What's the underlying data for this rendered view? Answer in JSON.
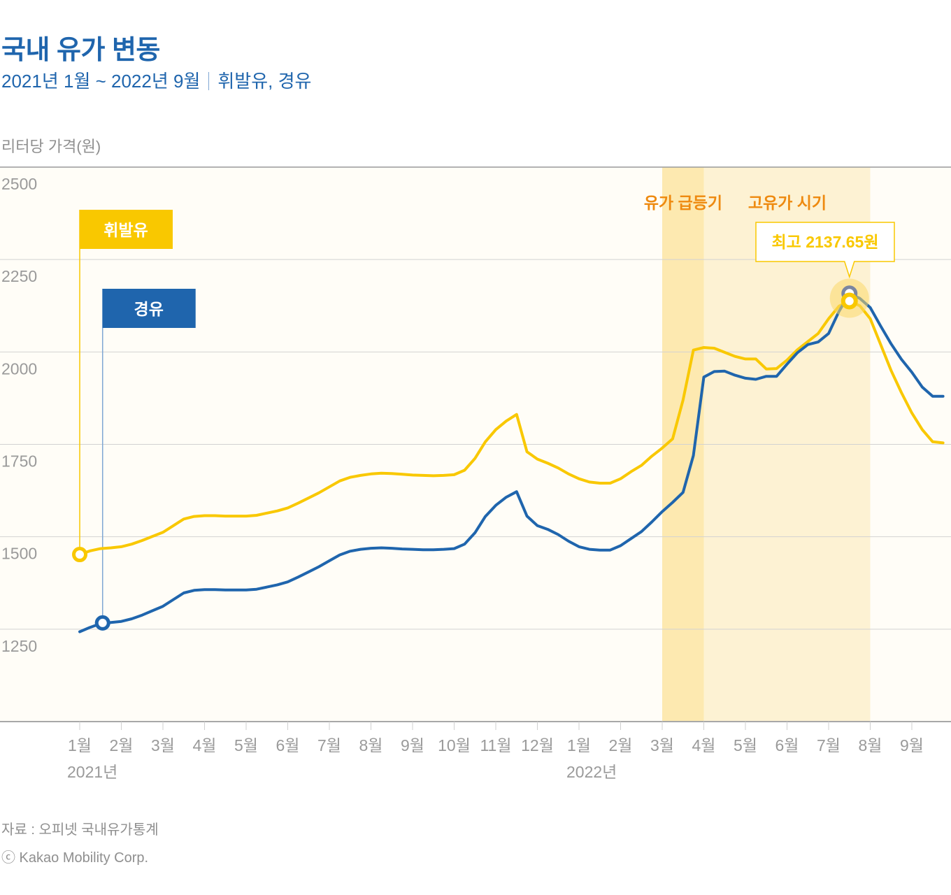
{
  "header": {
    "title": "국내 유가 변동",
    "subtitle_period": "2021년 1월 ~ 2022년 9월",
    "subtitle_fuels": "휘발유, 경유"
  },
  "footer": {
    "source": "자료 : 오피넷 국내유가통계",
    "copyright": "ⓒ Kakao Mobility Corp."
  },
  "colors": {
    "gasoline": "#f9c800",
    "diesel": "#1f65ad",
    "surge_band": "#fde9b0",
    "high_band": "#fdf2d3",
    "annotation_text": "#ee8a10",
    "plot_bg": "#fffdf7",
    "grid": "#d2d2d2",
    "axis_text": "#9a9a9a"
  },
  "chart_data": {
    "type": "line",
    "title": "국내 유가 변동",
    "ylabel": "리터당 가격(원)",
    "xlabel": "",
    "ylim": [
      1000,
      2500
    ],
    "yticks": [
      1250,
      1500,
      1750,
      2000,
      2250,
      2500
    ],
    "grid": true,
    "x_tick_labels": [
      "1월",
      "2월",
      "3월",
      "4월",
      "5월",
      "6월",
      "7월",
      "8월",
      "9월",
      "10월",
      "11월",
      "12월",
      "1월",
      "2월",
      "3월",
      "4월",
      "5월",
      "6월",
      "7월",
      "8월",
      "9월"
    ],
    "x_year_labels": [
      {
        "label": "2021년",
        "month_index": 0
      },
      {
        "label": "2022년",
        "month_index": 12
      }
    ],
    "x_note": "x values are month index from 2021년 1월 (0) to 2022년 9월 (20), approx. weekly",
    "series": [
      {
        "name": "휘발유",
        "legend_label": "휘발유",
        "points": [
          [
            0.0,
            1452
          ],
          [
            0.25,
            1462
          ],
          [
            0.5,
            1468
          ],
          [
            0.75,
            1470
          ],
          [
            1.0,
            1473
          ],
          [
            1.25,
            1480
          ],
          [
            1.5,
            1490
          ],
          [
            1.75,
            1501
          ],
          [
            2.0,
            1512
          ],
          [
            2.25,
            1530
          ],
          [
            2.5,
            1548
          ],
          [
            2.75,
            1555
          ],
          [
            3.0,
            1557
          ],
          [
            3.25,
            1557
          ],
          [
            3.5,
            1556
          ],
          [
            3.75,
            1556
          ],
          [
            4.0,
            1556
          ],
          [
            4.25,
            1558
          ],
          [
            4.5,
            1564
          ],
          [
            4.75,
            1570
          ],
          [
            5.0,
            1578
          ],
          [
            5.25,
            1591
          ],
          [
            5.5,
            1605
          ],
          [
            5.75,
            1619
          ],
          [
            6.0,
            1635
          ],
          [
            6.25,
            1651
          ],
          [
            6.5,
            1661
          ],
          [
            6.75,
            1666
          ],
          [
            7.0,
            1670
          ],
          [
            7.25,
            1672
          ],
          [
            7.5,
            1671
          ],
          [
            7.75,
            1669
          ],
          [
            8.0,
            1667
          ],
          [
            8.25,
            1666
          ],
          [
            8.5,
            1665
          ],
          [
            8.75,
            1666
          ],
          [
            9.0,
            1668
          ],
          [
            9.25,
            1680
          ],
          [
            9.5,
            1712
          ],
          [
            9.75,
            1757
          ],
          [
            10.0,
            1790
          ],
          [
            10.25,
            1813
          ],
          [
            10.5,
            1831
          ],
          [
            10.75,
            1730
          ],
          [
            11.0,
            1710
          ],
          [
            11.25,
            1699
          ],
          [
            11.5,
            1686
          ],
          [
            11.75,
            1670
          ],
          [
            12.0,
            1657
          ],
          [
            12.25,
            1648
          ],
          [
            12.5,
            1645
          ],
          [
            12.75,
            1645
          ],
          [
            13.0,
            1657
          ],
          [
            13.25,
            1676
          ],
          [
            13.5,
            1693
          ],
          [
            13.75,
            1718
          ],
          [
            14.0,
            1740
          ],
          [
            14.25,
            1765
          ],
          [
            14.5,
            1870
          ],
          [
            14.75,
            2005
          ],
          [
            15.0,
            2012
          ],
          [
            15.25,
            2010
          ],
          [
            15.5,
            1999
          ],
          [
            15.75,
            1988
          ],
          [
            16.0,
            1981
          ],
          [
            16.25,
            1981
          ],
          [
            16.5,
            1954
          ],
          [
            16.75,
            1955
          ],
          [
            17.0,
            1978
          ],
          [
            17.25,
            2006
          ],
          [
            17.5,
            2028
          ],
          [
            17.75,
            2050
          ],
          [
            18.0,
            2090
          ],
          [
            18.25,
            2124
          ],
          [
            18.5,
            2137.65
          ],
          [
            18.75,
            2125
          ],
          [
            19.0,
            2090
          ],
          [
            19.25,
            2020
          ],
          [
            19.5,
            1950
          ],
          [
            19.75,
            1890
          ],
          [
            20.0,
            1835
          ],
          [
            20.25,
            1790
          ],
          [
            20.5,
            1757
          ],
          [
            20.75,
            1754
          ]
        ]
      },
      {
        "name": "경유",
        "legend_label": "경유",
        "points": [
          [
            0.0,
            1243
          ],
          [
            0.25,
            1255
          ],
          [
            0.5,
            1265
          ],
          [
            0.75,
            1268
          ],
          [
            1.0,
            1271
          ],
          [
            1.25,
            1278
          ],
          [
            1.5,
            1288
          ],
          [
            1.75,
            1300
          ],
          [
            2.0,
            1312
          ],
          [
            2.25,
            1330
          ],
          [
            2.5,
            1348
          ],
          [
            2.75,
            1355
          ],
          [
            3.0,
            1357
          ],
          [
            3.25,
            1357
          ],
          [
            3.5,
            1356
          ],
          [
            3.75,
            1356
          ],
          [
            4.0,
            1356
          ],
          [
            4.25,
            1358
          ],
          [
            4.5,
            1364
          ],
          [
            4.75,
            1370
          ],
          [
            5.0,
            1378
          ],
          [
            5.25,
            1391
          ],
          [
            5.5,
            1405
          ],
          [
            5.75,
            1419
          ],
          [
            6.0,
            1435
          ],
          [
            6.25,
            1451
          ],
          [
            6.5,
            1461
          ],
          [
            6.75,
            1466
          ],
          [
            7.0,
            1469
          ],
          [
            7.25,
            1470
          ],
          [
            7.5,
            1469
          ],
          [
            7.75,
            1467
          ],
          [
            8.0,
            1466
          ],
          [
            8.25,
            1465
          ],
          [
            8.5,
            1465
          ],
          [
            8.75,
            1466
          ],
          [
            9.0,
            1468
          ],
          [
            9.25,
            1480
          ],
          [
            9.5,
            1511
          ],
          [
            9.75,
            1555
          ],
          [
            10.0,
            1585
          ],
          [
            10.25,
            1607
          ],
          [
            10.5,
            1622
          ],
          [
            10.75,
            1556
          ],
          [
            11.0,
            1530
          ],
          [
            11.25,
            1520
          ],
          [
            11.5,
            1506
          ],
          [
            11.75,
            1488
          ],
          [
            12.0,
            1473
          ],
          [
            12.25,
            1466
          ],
          [
            12.5,
            1464
          ],
          [
            12.75,
            1464
          ],
          [
            13.0,
            1476
          ],
          [
            13.25,
            1495
          ],
          [
            13.5,
            1514
          ],
          [
            13.75,
            1540
          ],
          [
            14.0,
            1568
          ],
          [
            14.25,
            1593
          ],
          [
            14.5,
            1620
          ],
          [
            14.75,
            1720
          ],
          [
            15.0,
            1932
          ],
          [
            15.25,
            1947
          ],
          [
            15.5,
            1948
          ],
          [
            15.75,
            1937
          ],
          [
            16.0,
            1929
          ],
          [
            16.25,
            1926
          ],
          [
            16.5,
            1934
          ],
          [
            16.75,
            1934
          ],
          [
            17.0,
            1967
          ],
          [
            17.25,
            1998
          ],
          [
            17.5,
            2020
          ],
          [
            17.75,
            2027
          ],
          [
            18.0,
            2050
          ],
          [
            18.25,
            2110
          ],
          [
            18.5,
            2158
          ],
          [
            18.75,
            2145
          ],
          [
            19.0,
            2120
          ],
          [
            19.25,
            2070
          ],
          [
            19.5,
            2022
          ],
          [
            19.75,
            1980
          ],
          [
            20.0,
            1945
          ],
          [
            20.25,
            1905
          ],
          [
            20.5,
            1880
          ],
          [
            20.75,
            1880
          ]
        ]
      }
    ],
    "annotations": [
      {
        "type": "band",
        "label": "유가 급등기",
        "from_month_index": 14,
        "to_month_index": 15
      },
      {
        "type": "band",
        "label": "고유가 시기",
        "from_month_index": 15,
        "to_month_index": 19
      },
      {
        "type": "callout",
        "label": "최고 2137.65원",
        "series": "휘발유",
        "month_index": 18.5,
        "value": 2137.65
      }
    ],
    "legend_placement": "flag-labels-at-series-start"
  }
}
